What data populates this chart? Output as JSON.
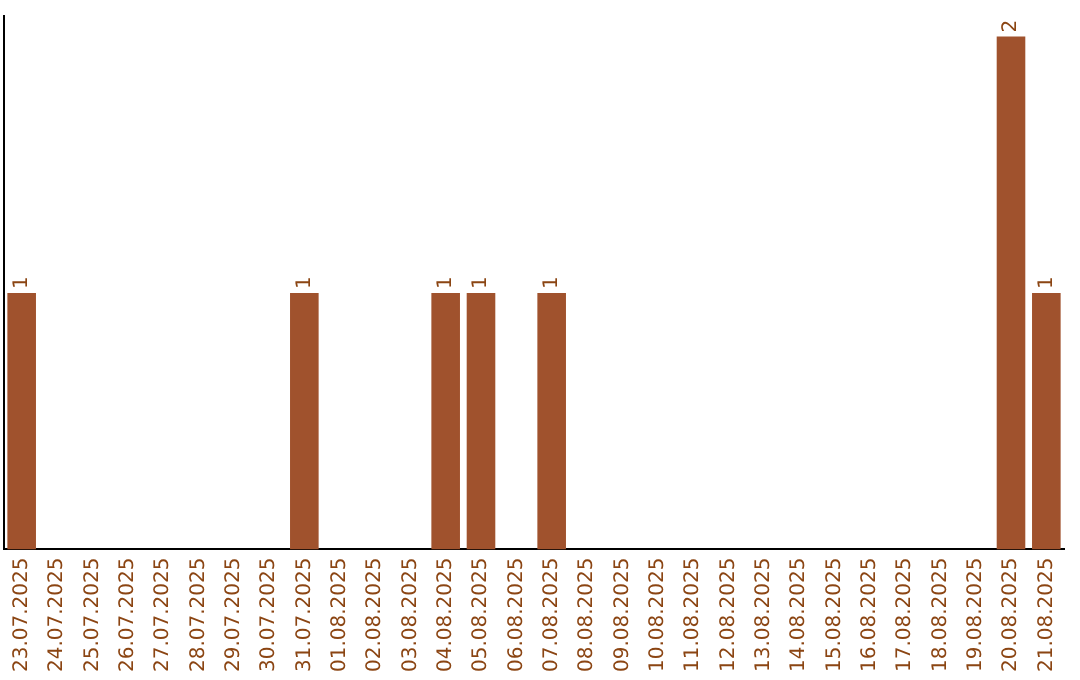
{
  "chart_data": {
    "type": "bar",
    "categories": [
      "23.07.2025",
      "24.07.2025",
      "25.07.2025",
      "26.07.2025",
      "27.07.2025",
      "28.07.2025",
      "29.07.2025",
      "30.07.2025",
      "31.07.2025",
      "01.08.2025",
      "02.08.2025",
      "03.08.2025",
      "04.08.2025",
      "05.08.2025",
      "06.08.2025",
      "07.08.2025",
      "08.08.2025",
      "09.08.2025",
      "10.08.2025",
      "11.08.2025",
      "12.08.2025",
      "13.08.2025",
      "14.08.2025",
      "15.08.2025",
      "16.08.2025",
      "17.08.2025",
      "18.08.2025",
      "19.08.2025",
      "20.08.2025",
      "21.08.2025"
    ],
    "values": [
      1,
      0,
      0,
      0,
      0,
      0,
      0,
      0,
      1,
      0,
      0,
      0,
      1,
      1,
      0,
      1,
      0,
      0,
      0,
      0,
      0,
      0,
      0,
      0,
      0,
      0,
      0,
      0,
      2,
      1
    ],
    "color": "#a0522d",
    "ylim": [
      0,
      2.08
    ],
    "value_labels": [
      "1",
      null,
      null,
      null,
      null,
      null,
      null,
      null,
      "1",
      null,
      null,
      null,
      "1",
      "1",
      null,
      "1",
      null,
      null,
      null,
      null,
      null,
      null,
      null,
      null,
      null,
      null,
      null,
      null,
      "2",
      "1"
    ],
    "grid": false,
    "legend": false
  }
}
